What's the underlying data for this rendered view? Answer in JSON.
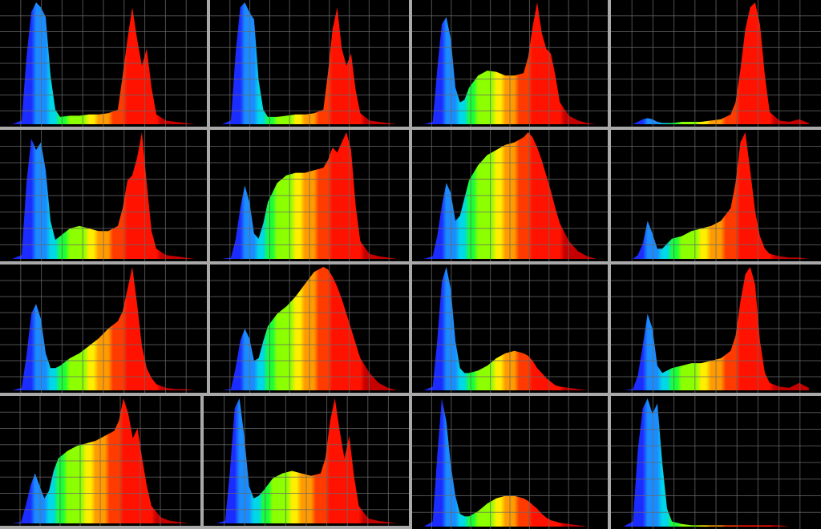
{
  "figure": {
    "description_text": "",
    "accent": "#ffffff",
    "grid_color": "#6a6a6a",
    "panel_background": "#000000"
  },
  "chart_data": [
    {
      "type": "area",
      "title": "",
      "x": [
        400,
        420,
        430,
        440,
        450,
        460,
        470,
        480,
        490,
        500,
        520,
        540,
        560,
        580,
        600,
        620,
        630,
        640,
        650,
        660,
        670,
        680,
        690,
        700,
        720,
        740,
        760,
        780
      ],
      "values": [
        0,
        3,
        55,
        92,
        100,
        96,
        88,
        40,
        12,
        6,
        7,
        7,
        8,
        8,
        9,
        12,
        40,
        70,
        96,
        70,
        48,
        62,
        30,
        8,
        3,
        2,
        1,
        0
      ],
      "xlim": [
        380,
        800
      ],
      "ylim": [
        0,
        100
      ]
    },
    {
      "type": "area",
      "title": "",
      "x": [
        400,
        420,
        430,
        440,
        450,
        460,
        470,
        480,
        490,
        500,
        520,
        540,
        560,
        580,
        600,
        620,
        630,
        640,
        650,
        660,
        670,
        680,
        690,
        700,
        720,
        740,
        760,
        780
      ],
      "values": [
        0,
        3,
        58,
        96,
        100,
        92,
        86,
        36,
        12,
        6,
        6,
        7,
        8,
        8,
        9,
        12,
        42,
        78,
        96,
        62,
        48,
        58,
        28,
        9,
        3,
        2,
        1,
        0
      ],
      "xlim": [
        380,
        800
      ],
      "ylim": [
        0,
        100
      ]
    },
    {
      "type": "area",
      "title": "",
      "x": [
        400,
        420,
        430,
        440,
        450,
        460,
        470,
        480,
        490,
        500,
        520,
        540,
        560,
        580,
        600,
        620,
        630,
        640,
        650,
        660,
        670,
        680,
        690,
        700,
        720,
        740,
        760,
        780
      ],
      "values": [
        0,
        2,
        45,
        82,
        88,
        70,
        30,
        18,
        20,
        30,
        40,
        44,
        43,
        40,
        40,
        42,
        55,
        80,
        100,
        75,
        62,
        58,
        40,
        18,
        7,
        3,
        1,
        0
      ],
      "xlim": [
        380,
        800
      ],
      "ylim": [
        0,
        100
      ]
    },
    {
      "type": "area",
      "title": "",
      "x": [
        400,
        420,
        430,
        440,
        450,
        460,
        470,
        480,
        490,
        500,
        520,
        540,
        560,
        580,
        600,
        620,
        630,
        640,
        650,
        660,
        670,
        680,
        690,
        700,
        720,
        740,
        760,
        780
      ],
      "values": [
        0,
        0,
        2,
        4,
        5,
        4,
        2,
        1,
        1,
        1,
        2,
        2,
        2,
        3,
        4,
        8,
        18,
        45,
        78,
        96,
        100,
        82,
        40,
        10,
        3,
        2,
        4,
        1
      ],
      "xlim": [
        380,
        800
      ],
      "ylim": [
        0,
        100
      ]
    },
    {
      "type": "area",
      "title": "",
      "x": [
        400,
        420,
        430,
        440,
        450,
        460,
        470,
        480,
        490,
        500,
        520,
        540,
        560,
        580,
        600,
        620,
        630,
        640,
        650,
        660,
        670,
        680,
        690,
        700,
        720,
        740,
        760,
        780
      ],
      "values": [
        0,
        3,
        60,
        95,
        86,
        92,
        70,
        30,
        15,
        18,
        24,
        26,
        24,
        22,
        22,
        26,
        40,
        62,
        66,
        80,
        100,
        60,
        22,
        8,
        3,
        2,
        1,
        0
      ],
      "xlim": [
        380,
        800
      ],
      "ylim": [
        0,
        100
      ]
    },
    {
      "type": "area",
      "title": "",
      "x": [
        400,
        420,
        430,
        440,
        450,
        460,
        470,
        480,
        490,
        500,
        520,
        540,
        560,
        580,
        600,
        620,
        630,
        640,
        650,
        660,
        670,
        680,
        690,
        700,
        720,
        740,
        760,
        780
      ],
      "values": [
        0,
        1,
        15,
        40,
        58,
        45,
        20,
        16,
        28,
        45,
        60,
        66,
        68,
        68,
        70,
        72,
        78,
        88,
        84,
        92,
        100,
        86,
        42,
        14,
        4,
        2,
        1,
        0
      ],
      "xlim": [
        380,
        800
      ],
      "ylim": [
        0,
        100
      ]
    },
    {
      "type": "area",
      "title": "",
      "x": [
        400,
        420,
        430,
        440,
        450,
        460,
        470,
        480,
        490,
        500,
        520,
        540,
        560,
        580,
        600,
        620,
        630,
        640,
        650,
        660,
        670,
        680,
        690,
        700,
        720,
        740,
        760,
        780
      ],
      "values": [
        0,
        2,
        18,
        42,
        60,
        52,
        30,
        34,
        48,
        62,
        74,
        82,
        86,
        90,
        92,
        96,
        100,
        96,
        88,
        78,
        66,
        54,
        40,
        28,
        14,
        6,
        2,
        0
      ],
      "xlim": [
        380,
        800
      ],
      "ylim": [
        0,
        100
      ]
    },
    {
      "type": "area",
      "title": "",
      "x": [
        400,
        420,
        430,
        440,
        450,
        460,
        470,
        480,
        490,
        500,
        520,
        540,
        560,
        580,
        600,
        620,
        630,
        640,
        650,
        660,
        670,
        680,
        690,
        700,
        720,
        740,
        760,
        780
      ],
      "values": [
        0,
        0,
        3,
        12,
        30,
        20,
        8,
        8,
        12,
        16,
        18,
        22,
        24,
        26,
        30,
        40,
        60,
        92,
        100,
        70,
        38,
        18,
        8,
        4,
        2,
        1,
        1,
        0
      ],
      "xlim": [
        380,
        800
      ],
      "ylim": [
        0,
        100
      ]
    },
    {
      "type": "area",
      "title": "",
      "x": [
        400,
        420,
        430,
        440,
        450,
        460,
        470,
        480,
        490,
        500,
        520,
        540,
        560,
        580,
        600,
        620,
        630,
        640,
        650,
        660,
        670,
        680,
        690,
        700,
        720,
        740,
        760,
        780
      ],
      "values": [
        0,
        2,
        28,
        62,
        70,
        58,
        30,
        18,
        18,
        20,
        26,
        30,
        36,
        42,
        50,
        56,
        64,
        82,
        100,
        70,
        36,
        18,
        10,
        5,
        2,
        1,
        1,
        0
      ],
      "xlim": [
        380,
        800
      ],
      "ylim": [
        0,
        100
      ]
    },
    {
      "type": "area",
      "title": "",
      "x": [
        400,
        420,
        430,
        440,
        450,
        460,
        470,
        480,
        490,
        500,
        520,
        540,
        560,
        580,
        600,
        620,
        630,
        640,
        650,
        660,
        670,
        680,
        690,
        700,
        720,
        740,
        760,
        780
      ],
      "values": [
        0,
        1,
        18,
        40,
        50,
        42,
        24,
        26,
        40,
        52,
        62,
        68,
        76,
        86,
        96,
        100,
        98,
        92,
        84,
        74,
        62,
        50,
        38,
        26,
        14,
        6,
        2,
        0
      ],
      "xlim": [
        380,
        800
      ],
      "ylim": [
        0,
        100
      ]
    },
    {
      "type": "area",
      "title": "",
      "x": [
        400,
        420,
        430,
        440,
        450,
        460,
        470,
        480,
        490,
        500,
        520,
        540,
        560,
        580,
        600,
        620,
        630,
        640,
        650,
        660,
        670,
        680,
        690,
        700,
        720,
        740,
        760,
        780
      ],
      "values": [
        0,
        3,
        40,
        88,
        100,
        82,
        40,
        18,
        14,
        14,
        16,
        20,
        26,
        30,
        32,
        30,
        28,
        24,
        18,
        14,
        10,
        7,
        4,
        3,
        2,
        1,
        0,
        0
      ],
      "xlim": [
        380,
        800
      ],
      "ylim": [
        0,
        100
      ]
    },
    {
      "type": "area",
      "title": "",
      "x": [
        400,
        420,
        430,
        440,
        450,
        460,
        470,
        480,
        490,
        500,
        520,
        540,
        560,
        580,
        600,
        620,
        630,
        640,
        650,
        660,
        670,
        680,
        690,
        700,
        720,
        740,
        760,
        780
      ],
      "values": [
        0,
        1,
        12,
        36,
        62,
        50,
        20,
        14,
        16,
        18,
        20,
        22,
        22,
        24,
        26,
        32,
        44,
        72,
        94,
        100,
        86,
        40,
        14,
        6,
        3,
        2,
        6,
        2
      ],
      "xlim": [
        380,
        800
      ],
      "ylim": [
        0,
        100
      ]
    },
    {
      "type": "area",
      "title": "",
      "x": [
        400,
        420,
        430,
        440,
        450,
        460,
        470,
        480,
        490,
        500,
        520,
        540,
        560,
        580,
        600,
        620,
        630,
        640,
        650,
        660,
        670,
        680,
        690,
        700,
        720,
        740,
        760,
        780
      ],
      "values": [
        0,
        1,
        14,
        30,
        40,
        30,
        20,
        26,
        42,
        52,
        58,
        62,
        64,
        66,
        70,
        74,
        82,
        100,
        88,
        68,
        76,
        52,
        30,
        14,
        5,
        2,
        1,
        0
      ],
      "xlim": [
        380,
        800
      ],
      "ylim": [
        0,
        100
      ]
    },
    {
      "type": "area",
      "title": "",
      "x": [
        400,
        420,
        430,
        440,
        450,
        460,
        470,
        480,
        490,
        500,
        520,
        540,
        560,
        580,
        600,
        620,
        630,
        640,
        650,
        660,
        670,
        680,
        690,
        700,
        720,
        740,
        760,
        780
      ],
      "values": [
        0,
        2,
        42,
        92,
        100,
        70,
        30,
        20,
        22,
        26,
        36,
        40,
        42,
        40,
        38,
        40,
        52,
        82,
        100,
        74,
        52,
        70,
        38,
        14,
        4,
        2,
        1,
        0
      ],
      "xlim": [
        380,
        800
      ],
      "ylim": [
        0,
        100
      ]
    },
    {
      "type": "area",
      "title": "",
      "x": [
        400,
        420,
        430,
        440,
        450,
        460,
        470,
        480,
        490,
        500,
        520,
        540,
        560,
        580,
        600,
        620,
        630,
        640,
        650,
        660,
        670,
        680,
        690,
        700,
        720,
        740,
        760,
        780
      ],
      "values": [
        0,
        4,
        55,
        100,
        82,
        48,
        24,
        10,
        8,
        8,
        12,
        18,
        22,
        24,
        24,
        22,
        20,
        17,
        14,
        10,
        7,
        5,
        4,
        3,
        2,
        1,
        0,
        0
      ],
      "xlim": [
        380,
        800
      ],
      "ylim": [
        0,
        100
      ]
    },
    {
      "type": "area",
      "title": "",
      "x": [
        400,
        420,
        430,
        440,
        450,
        460,
        470,
        480,
        490,
        500,
        520,
        540,
        560,
        580,
        600,
        620,
        630,
        640,
        650,
        660,
        670,
        680,
        690,
        700,
        720,
        740,
        760,
        780
      ],
      "values": [
        0,
        4,
        60,
        92,
        100,
        88,
        96,
        50,
        14,
        4,
        2,
        1,
        1,
        1,
        1,
        1,
        1,
        1,
        1,
        1,
        1,
        1,
        1,
        1,
        1,
        0,
        0,
        0
      ],
      "xlim": [
        380,
        800
      ],
      "ylim": [
        0,
        100
      ]
    }
  ]
}
